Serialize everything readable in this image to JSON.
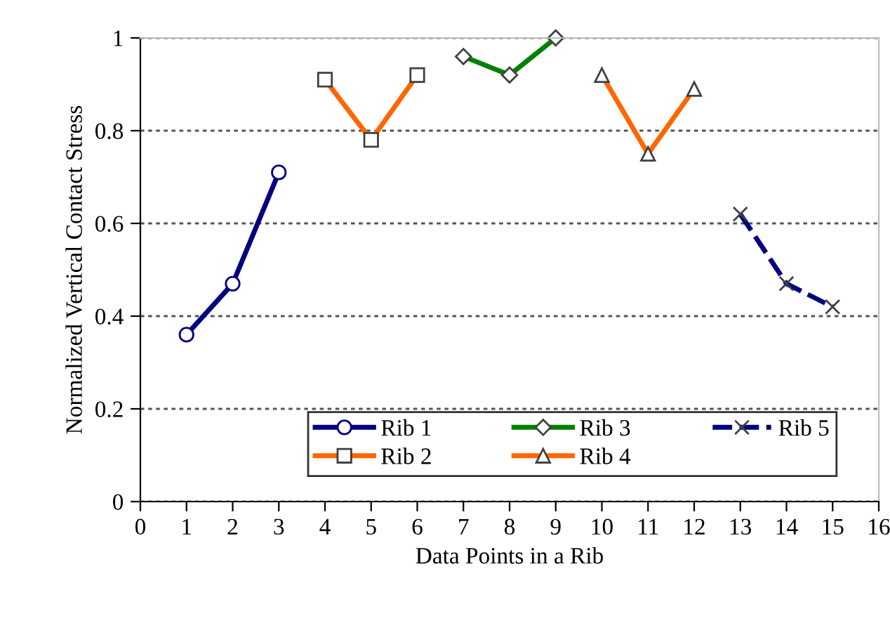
{
  "chart_data": {
    "type": "line",
    "xlabel": "Data Points in a Rib",
    "ylabel": "Normalized Vertical Contact Stress",
    "xlim": [
      0,
      16
    ],
    "xticks": [
      0,
      1,
      2,
      3,
      4,
      5,
      6,
      7,
      8,
      9,
      10,
      11,
      12,
      13,
      14,
      15,
      16
    ],
    "ylim": [
      0,
      1
    ],
    "yticks": [
      0,
      0.2,
      0.4,
      0.6,
      0.8,
      1
    ],
    "grid": "y",
    "legend": "bottom",
    "series": [
      {
        "name": "Rib 1",
        "color": "#000080",
        "marker": "circle",
        "line_style": "solid",
        "x": [
          1,
          2,
          3
        ],
        "values": [
          0.36,
          0.47,
          0.71
        ]
      },
      {
        "name": "Rib 2",
        "color": "#ff6600",
        "marker": "square",
        "line_style": "solid",
        "x": [
          4,
          5,
          6
        ],
        "values": [
          0.91,
          0.78,
          0.92
        ]
      },
      {
        "name": "Rib 3",
        "color": "#008000",
        "marker": "diamond",
        "line_style": "solid",
        "x": [
          7,
          8,
          9
        ],
        "values": [
          0.96,
          0.92,
          1.0
        ]
      },
      {
        "name": "Rib 4",
        "color": "#ff6600",
        "marker": "triangle",
        "line_style": "solid",
        "x": [
          10,
          11,
          12
        ],
        "values": [
          0.92,
          0.75,
          0.89
        ]
      },
      {
        "name": "Rib 5",
        "color": "#000080",
        "marker": "cross",
        "line_style": "dashed",
        "x": [
          13,
          14,
          15
        ],
        "values": [
          0.62,
          0.47,
          0.42
        ]
      }
    ]
  }
}
